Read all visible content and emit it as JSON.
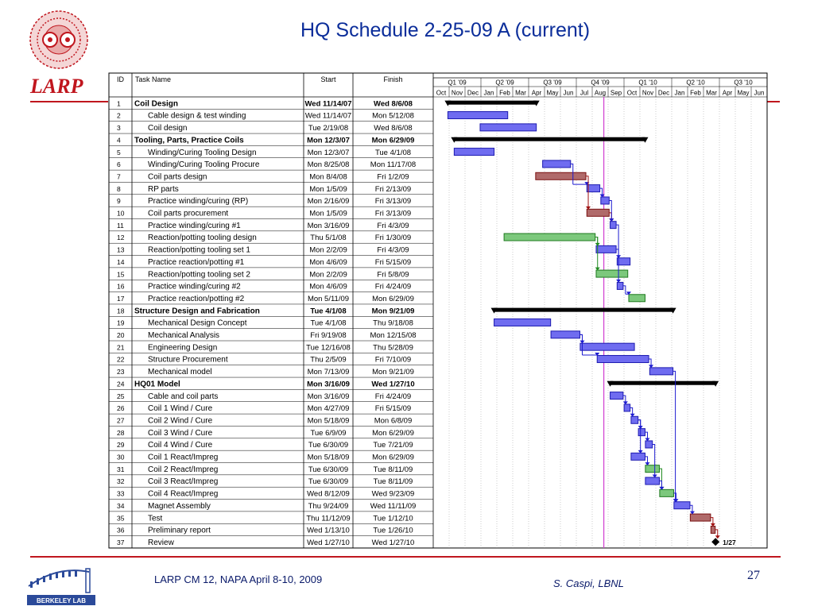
{
  "slide": {
    "title": "HQ Schedule 2-25-09 A (current)",
    "logo_text": "LARP",
    "footer_left": "LARP CM 12,  NAPA April 8-10, 2009",
    "footer_right": "S. Caspi, LBNL",
    "page_number": "27",
    "lab_logo_text": "BERKELEY LAB"
  },
  "chart_data": {
    "type": "gantt",
    "columns": [
      "ID",
      "Task Name",
      "Start",
      "Finish"
    ],
    "timeline_start": "2007-10-01",
    "timeline_end": "2010-07-01",
    "today_marker": "2009-02-25",
    "quarters": [
      "Q1 '09",
      "Q2 '09",
      "Q3 '09",
      "Q4 '09",
      "Q1 '10",
      "Q2 '10",
      "Q3 '10"
    ],
    "months": [
      "Oct",
      "Nov",
      "Dec",
      "Jan",
      "Feb",
      "Mar",
      "Apr",
      "May",
      "Jun",
      "Jul",
      "Aug",
      "Sep",
      "Oct",
      "Nov",
      "Dec",
      "Jan",
      "Feb",
      "Mar",
      "Apr",
      "May",
      "Jun"
    ],
    "tasks": [
      {
        "id": "1",
        "name": "Coil Design",
        "start": "Wed 11/14/07",
        "finish": "Wed 8/6/08",
        "s": "2007-11-14",
        "f": "2008-08-06",
        "summary": true,
        "kind": "summary"
      },
      {
        "id": "2",
        "name": "Cable design & test winding",
        "start": "Wed 11/14/07",
        "finish": "Mon 5/12/08",
        "s": "2007-11-14",
        "f": "2008-05-12",
        "summary": false,
        "kind": "blue"
      },
      {
        "id": "3",
        "name": "Coil design",
        "start": "Tue 2/19/08",
        "finish": "Wed 8/6/08",
        "s": "2008-02-19",
        "f": "2008-08-06",
        "summary": false,
        "kind": "blue"
      },
      {
        "id": "4",
        "name": "Tooling, Parts, Practice Coils",
        "start": "Mon 12/3/07",
        "finish": "Mon 6/29/09",
        "s": "2007-12-03",
        "f": "2009-06-29",
        "summary": true,
        "kind": "summary"
      },
      {
        "id": "5",
        "name": "Winding/Curing Tooling Design",
        "start": "Mon 12/3/07",
        "finish": "Tue 4/1/08",
        "s": "2007-12-03",
        "f": "2008-04-01",
        "summary": false,
        "kind": "blue"
      },
      {
        "id": "6",
        "name": "Winding/Curing Tooling Procure",
        "start": "Mon 8/25/08",
        "finish": "Mon 11/17/08",
        "s": "2008-08-25",
        "f": "2008-11-17",
        "summary": false,
        "kind": "blue"
      },
      {
        "id": "7",
        "name": "Coil parts design",
        "start": "Mon 8/4/08",
        "finish": "Fri 1/2/09",
        "s": "2008-08-04",
        "f": "2009-01-02",
        "summary": false,
        "kind": "red"
      },
      {
        "id": "8",
        "name": "RP parts",
        "start": "Mon 1/5/09",
        "finish": "Fri 2/13/09",
        "s": "2009-01-05",
        "f": "2009-02-13",
        "summary": false,
        "kind": "blue"
      },
      {
        "id": "9",
        "name": "Practice winding/curing (RP)",
        "start": "Mon 2/16/09",
        "finish": "Fri 3/13/09",
        "s": "2009-02-16",
        "f": "2009-03-13",
        "summary": false,
        "kind": "blue"
      },
      {
        "id": "10",
        "name": "Coil parts procurement",
        "start": "Mon 1/5/09",
        "finish": "Fri 3/13/09",
        "s": "2009-01-05",
        "f": "2009-03-13",
        "summary": false,
        "kind": "red"
      },
      {
        "id": "11",
        "name": "Practice winding/curing #1",
        "start": "Mon 3/16/09",
        "finish": "Fri 4/3/09",
        "s": "2009-03-16",
        "f": "2009-04-03",
        "summary": false,
        "kind": "blue"
      },
      {
        "id": "12",
        "name": "Reaction/potting tooling design",
        "start": "Thu 5/1/08",
        "finish": "Fri 1/30/09",
        "s": "2008-05-01",
        "f": "2009-01-30",
        "summary": false,
        "kind": "green"
      },
      {
        "id": "13",
        "name": "Reaction/potting tooling set 1",
        "start": "Mon 2/2/09",
        "finish": "Fri 4/3/09",
        "s": "2009-02-02",
        "f": "2009-04-03",
        "summary": false,
        "kind": "blue"
      },
      {
        "id": "14",
        "name": "Practice reaction/potting #1",
        "start": "Mon 4/6/09",
        "finish": "Fri 5/15/09",
        "s": "2009-04-06",
        "f": "2009-05-15",
        "summary": false,
        "kind": "blue"
      },
      {
        "id": "15",
        "name": "Reaction/potting tooling set 2",
        "start": "Mon 2/2/09",
        "finish": "Fri 5/8/09",
        "s": "2009-02-02",
        "f": "2009-05-08",
        "summary": false,
        "kind": "green"
      },
      {
        "id": "16",
        "name": "Practice winding/curing #2",
        "start": "Mon 4/6/09",
        "finish": "Fri 4/24/09",
        "s": "2009-04-06",
        "f": "2009-04-24",
        "summary": false,
        "kind": "blue"
      },
      {
        "id": "17",
        "name": "Practice reaction/potting #2",
        "start": "Mon 5/11/09",
        "finish": "Mon 6/29/09",
        "s": "2009-05-11",
        "f": "2009-06-29",
        "summary": false,
        "kind": "green"
      },
      {
        "id": "18",
        "name": "Structure Design and Fabrication",
        "start": "Tue 4/1/08",
        "finish": "Mon 9/21/09",
        "s": "2008-04-01",
        "f": "2009-09-21",
        "summary": true,
        "kind": "summary"
      },
      {
        "id": "19",
        "name": "Mechanical Design Concept",
        "start": "Tue 4/1/08",
        "finish": "Thu 9/18/08",
        "s": "2008-04-01",
        "f": "2008-09-18",
        "summary": false,
        "kind": "blue"
      },
      {
        "id": "20",
        "name": "Mechanical Analysis",
        "start": "Fri 9/19/08",
        "finish": "Mon 12/15/08",
        "s": "2008-09-19",
        "f": "2008-12-15",
        "summary": false,
        "kind": "blue"
      },
      {
        "id": "21",
        "name": "Engineering Design",
        "start": "Tue 12/16/08",
        "finish": "Thu 5/28/09",
        "s": "2008-12-16",
        "f": "2009-05-28",
        "summary": false,
        "kind": "blue"
      },
      {
        "id": "22",
        "name": "Structure Procurement",
        "start": "Thu 2/5/09",
        "finish": "Fri 7/10/09",
        "s": "2009-02-05",
        "f": "2009-07-10",
        "summary": false,
        "kind": "blue"
      },
      {
        "id": "23",
        "name": "Mechanical model",
        "start": "Mon 7/13/09",
        "finish": "Mon 9/21/09",
        "s": "2009-07-13",
        "f": "2009-09-21",
        "summary": false,
        "kind": "blue"
      },
      {
        "id": "24",
        "name": "HQ01 Model",
        "start": "Mon 3/16/09",
        "finish": "Wed 1/27/10",
        "s": "2009-03-16",
        "f": "2010-01-27",
        "summary": true,
        "kind": "summary"
      },
      {
        "id": "25",
        "name": "Cable and coil parts",
        "start": "Mon 3/16/09",
        "finish": "Fri 4/24/09",
        "s": "2009-03-16",
        "f": "2009-04-24",
        "summary": false,
        "kind": "blue"
      },
      {
        "id": "26",
        "name": "Coil 1 Wind / Cure",
        "start": "Mon 4/27/09",
        "finish": "Fri 5/15/09",
        "s": "2009-04-27",
        "f": "2009-05-15",
        "summary": false,
        "kind": "blue"
      },
      {
        "id": "27",
        "name": "Coil 2 Wind / Cure",
        "start": "Mon 5/18/09",
        "finish": "Mon 6/8/09",
        "s": "2009-05-18",
        "f": "2009-06-08",
        "summary": false,
        "kind": "blue"
      },
      {
        "id": "28",
        "name": "Coil 3 Wind / Cure",
        "start": "Tue 6/9/09",
        "finish": "Mon 6/29/09",
        "s": "2009-06-09",
        "f": "2009-06-29",
        "summary": false,
        "kind": "blue"
      },
      {
        "id": "29",
        "name": "Coil 4 Wind / Cure",
        "start": "Tue 6/30/09",
        "finish": "Tue 7/21/09",
        "s": "2009-06-30",
        "f": "2009-07-21",
        "summary": false,
        "kind": "blue"
      },
      {
        "id": "30",
        "name": "Coil 1 React/Impreg",
        "start": "Mon 5/18/09",
        "finish": "Mon 6/29/09",
        "s": "2009-05-18",
        "f": "2009-06-29",
        "summary": false,
        "kind": "blue"
      },
      {
        "id": "31",
        "name": "Coil 2 React/Impreg",
        "start": "Tue 6/30/09",
        "finish": "Tue 8/11/09",
        "s": "2009-06-30",
        "f": "2009-08-11",
        "summary": false,
        "kind": "green"
      },
      {
        "id": "32",
        "name": "Coil 3 React/Impreg",
        "start": "Tue 6/30/09",
        "finish": "Tue 8/11/09",
        "s": "2009-06-30",
        "f": "2009-08-11",
        "summary": false,
        "kind": "blue"
      },
      {
        "id": "33",
        "name": "Coil 4 React/Impreg",
        "start": "Wed 8/12/09",
        "finish": "Wed 9/23/09",
        "s": "2009-08-12",
        "f": "2009-09-23",
        "summary": false,
        "kind": "green"
      },
      {
        "id": "34",
        "name": "Magnet Assembly",
        "start": "Thu 9/24/09",
        "finish": "Wed 11/11/09",
        "s": "2009-09-24",
        "f": "2009-11-11",
        "summary": false,
        "kind": "blue"
      },
      {
        "id": "35",
        "name": "Test",
        "start": "Thu 11/12/09",
        "finish": "Tue 1/12/10",
        "s": "2009-11-12",
        "f": "2010-01-12",
        "summary": false,
        "kind": "red"
      },
      {
        "id": "36",
        "name": "Preliminary report",
        "start": "Wed 1/13/10",
        "finish": "Tue 1/26/10",
        "s": "2010-01-13",
        "f": "2010-01-26",
        "summary": false,
        "kind": "red"
      },
      {
        "id": "37",
        "name": "Review",
        "start": "Wed 1/27/10",
        "finish": "Wed 1/27/10",
        "s": "2010-01-27",
        "f": "2010-01-27",
        "summary": false,
        "kind": "milestone",
        "label": "1/27"
      }
    ],
    "colors": {
      "blue": "#6f6cf0",
      "blue_border": "#1d1bb0",
      "red": "#b06a6a",
      "red_border": "#7a1010",
      "green": "#7cc87c",
      "green_border": "#1f7a1f",
      "summary": "#000000",
      "today": "#d040d0",
      "arrow_blue": "#1d1bd0",
      "arrow_red": "#a01010",
      "arrow_green": "#1f8a1f"
    }
  }
}
